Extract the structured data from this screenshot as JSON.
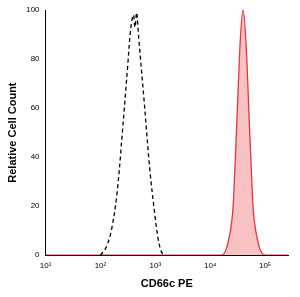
{
  "chart_data": {
    "type": "line",
    "x_label": "CD66c PE",
    "y_label": "Relative Cell Count",
    "log": "x",
    "grid": false,
    "xlim": [
      10,
      262144
    ],
    "xticks": [
      {
        "value": 10,
        "label": "10¹"
      },
      {
        "value": 100,
        "label": "10²"
      },
      {
        "value": 1000,
        "label": "10³"
      },
      {
        "value": 10000,
        "label": "10⁴"
      },
      {
        "value": 100000,
        "label": "10⁵"
      }
    ],
    "ylim": [
      0,
      100
    ],
    "yticks": [
      0,
      20,
      40,
      60,
      80,
      100
    ],
    "series": [
      {
        "color": "#000000",
        "line_style": "dashed",
        "type": "line",
        "x": [
          100,
          126,
          158,
          200,
          251,
          316,
          355,
          398,
          427,
          457,
          501,
          631,
          794,
          1000,
          1122,
          1259,
          1413
        ],
        "values": [
          0,
          3,
          10,
          25,
          50,
          78,
          92,
          98,
          93,
          99,
          88,
          62,
          35,
          15,
          7,
          2,
          0
        ]
      },
      {
        "color": "#e8343d",
        "line_style": "solid",
        "type": "area",
        "x": [
          10,
          15849,
          19953,
          25119,
          28184,
          31623,
          35481,
          39811,
          44668,
          50119,
          56234,
          63096,
          79433,
          100000,
          262144
        ],
        "values": [
          0,
          0,
          3,
          15,
          35,
          62,
          88,
          100,
          88,
          62,
          35,
          15,
          3,
          0,
          0
        ]
      }
    ]
  }
}
